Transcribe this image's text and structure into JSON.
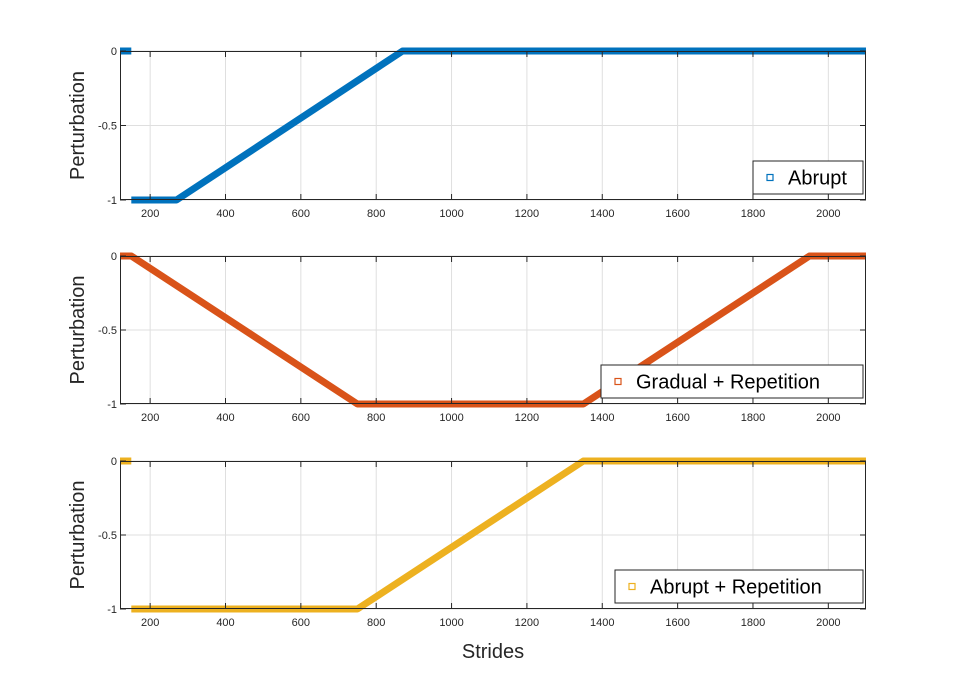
{
  "chart_data": [
    {
      "type": "scatter",
      "ylabel": "Perturbation",
      "xlabel": "",
      "xlim": [
        120,
        2100
      ],
      "ylim": [
        -1,
        0
      ],
      "xticks": [
        "200",
        "400",
        "600",
        "800",
        "1000",
        "1200",
        "1400",
        "1600",
        "1800",
        "2000"
      ],
      "yticks": [
        "0",
        "-0.5",
        "-1"
      ],
      "grid": true,
      "legend_position": "bottom-right",
      "series": [
        {
          "name": "Abrupt",
          "color": "#0072BD",
          "segments": [
            {
              "x": [
                120,
                150
              ],
              "y": [
                0,
                0
              ]
            },
            {
              "x": [
                150,
                270,
                870,
                2100
              ],
              "y": [
                -1,
                -1,
                0,
                0
              ]
            }
          ]
        }
      ]
    },
    {
      "type": "scatter",
      "ylabel": "Perturbation",
      "xlabel": "",
      "xlim": [
        120,
        2100
      ],
      "ylim": [
        -1,
        0
      ],
      "xticks": [
        "200",
        "400",
        "600",
        "800",
        "1000",
        "1200",
        "1400",
        "1600",
        "1800",
        "2000"
      ],
      "yticks": [
        "0",
        "-0.5",
        "-1"
      ],
      "grid": true,
      "legend_position": "bottom-right",
      "series": [
        {
          "name": "Gradual + Repetition",
          "color": "#D95319",
          "segments": [
            {
              "x": [
                120,
                150,
                750,
                1350,
                1950,
                2100
              ],
              "y": [
                0,
                0,
                -1,
                -1,
                0,
                0
              ]
            }
          ]
        }
      ]
    },
    {
      "type": "scatter",
      "ylabel": "Perturbation",
      "xlabel": "Strides",
      "xlim": [
        120,
        2100
      ],
      "ylim": [
        -1,
        0
      ],
      "xticks": [
        "200",
        "400",
        "600",
        "800",
        "1000",
        "1200",
        "1400",
        "1600",
        "1800",
        "2000"
      ],
      "yticks": [
        "0",
        "-0.5",
        "-1"
      ],
      "grid": true,
      "legend_position": "bottom-right",
      "series": [
        {
          "name": "Abrupt + Repetition",
          "color": "#EDB120",
          "segments": [
            {
              "x": [
                120,
                150
              ],
              "y": [
                0,
                0
              ]
            },
            {
              "x": [
                150,
                750,
                1350,
                2100
              ],
              "y": [
                -1,
                -1,
                0,
                0
              ]
            }
          ]
        }
      ]
    }
  ]
}
